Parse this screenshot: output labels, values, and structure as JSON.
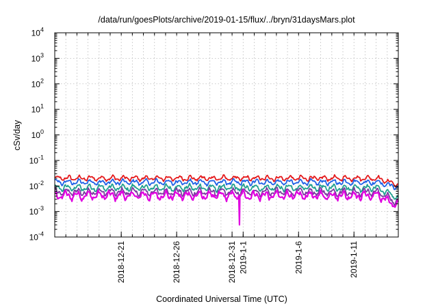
{
  "chart_data": {
    "type": "line",
    "title": "/data/run/goesPlots/archive/2019-01-15/flux/../bryn/31daysMars.plot",
    "xlabel": "Coordinated Universal Time (UTC)",
    "ylabel": "cSv/day",
    "yscale": "log",
    "ylim": [
      0.0001,
      10000
    ],
    "y_ticks": [
      {
        "value": 0.0001,
        "mantissa": "10",
        "exp": "-4"
      },
      {
        "value": 0.001,
        "mantissa": "10",
        "exp": "-3"
      },
      {
        "value": 0.01,
        "mantissa": "10",
        "exp": "-2"
      },
      {
        "value": 0.1,
        "mantissa": "10",
        "exp": "-1"
      },
      {
        "value": 1,
        "mantissa": "10",
        "exp": "0"
      },
      {
        "value": 10,
        "mantissa": "10",
        "exp": "1"
      },
      {
        "value": 100,
        "mantissa": "10",
        "exp": "2"
      },
      {
        "value": 1000,
        "mantissa": "10",
        "exp": "3"
      },
      {
        "value": 10000,
        "mantissa": "10",
        "exp": "4"
      }
    ],
    "xlim": [
      "2018-12-15",
      "2019-01-15"
    ],
    "x_ticks": [
      "2018-12-21",
      "2018-12-26",
      "2018-12-31",
      "2019-1-1",
      "2019-1-6",
      "2019-1-11"
    ],
    "grid": true,
    "legend": "none",
    "series": [
      {
        "color": "#e41a1c",
        "level": 0.02,
        "end_level": 0.011,
        "amplitude": 0.13
      },
      {
        "color": "#1e60e6",
        "level": 0.014,
        "end_level": 0.0085,
        "amplitude": 0.14
      },
      {
        "color": "#20a090",
        "level": 0.0085,
        "end_level": 0.0032,
        "amplitude": 0.17
      },
      {
        "color": "#7a3aa0",
        "level": 0.0058,
        "end_level": 0.0021,
        "amplitude": 0.19
      },
      {
        "color": "#e000e0",
        "level": 0.0042,
        "end_level": 0.0016,
        "amplitude": 0.22
      }
    ],
    "spikes": [
      {
        "x": "2018-12-31T16:00",
        "y": 0.0003,
        "series": 4
      }
    ]
  }
}
